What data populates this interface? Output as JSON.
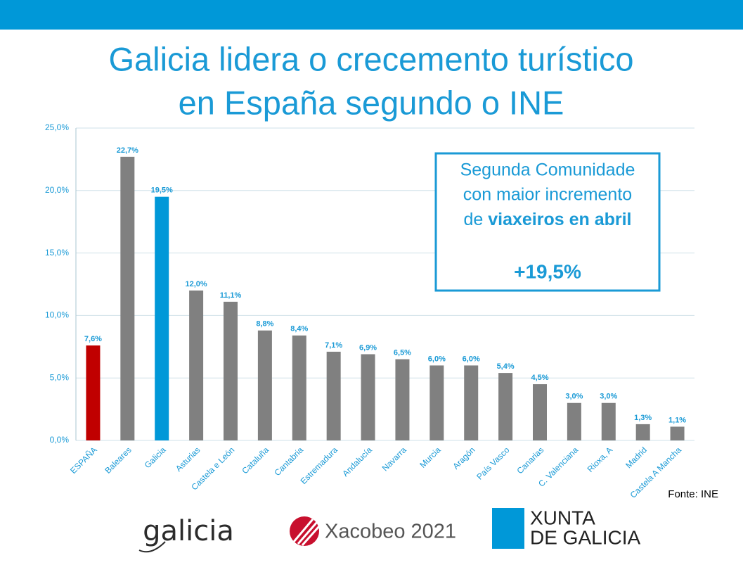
{
  "chart_data": {
    "type": "bar",
    "title": [
      "Galicia lidera o crecemento turístico",
      "en España segundo o INE"
    ],
    "categories": [
      "ESPAÑA",
      "Baleares",
      "Galicia",
      "Asturias",
      "Castela e León",
      "Cataluña",
      "Cantabria",
      "Estremadura",
      "Andalucía",
      "Navarra",
      "Murcia",
      "Aragón",
      "País Vasco",
      "Canarias",
      "C. Valenciana",
      "Rioxa, A",
      "Madrid",
      "Castela A Mancha"
    ],
    "values": [
      7.6,
      22.7,
      19.5,
      12.0,
      11.1,
      8.8,
      8.4,
      7.1,
      6.9,
      6.5,
      6.0,
      6.0,
      5.4,
      4.5,
      3.0,
      3.0,
      1.3,
      1.1
    ],
    "value_labels": [
      "7,6%",
      "22,7%",
      "19,5%",
      "12,0%",
      "11,1%",
      "8,8%",
      "8,4%",
      "7,1%",
      "6,9%",
      "6,5%",
      "6,0%",
      "6,0%",
      "5,4%",
      "4,5%",
      "3,0%",
      "3,0%",
      "1,3%",
      "1,1%"
    ],
    "colors": [
      "#c00000",
      "#808080",
      "#0098d8",
      "#808080",
      "#808080",
      "#808080",
      "#808080",
      "#808080",
      "#808080",
      "#808080",
      "#808080",
      "#808080",
      "#808080",
      "#808080",
      "#808080",
      "#808080",
      "#808080",
      "#808080"
    ],
    "ylim": [
      0,
      25
    ],
    "yticks": [
      {
        "value": 0,
        "label": "0,0%"
      },
      {
        "value": 5,
        "label": "5,0%"
      },
      {
        "value": 10,
        "label": "10,0%"
      },
      {
        "value": 15,
        "label": "15,0%"
      },
      {
        "value": 20,
        "label": "20,0%"
      },
      {
        "value": 25,
        "label": "25,0%"
      }
    ],
    "grid": true,
    "annotation": {
      "lines": [
        "Segunda Comunidade",
        "con maior incremento"
      ],
      "prefix": "de",
      "highlight": "viaxeiros en abril",
      "figure": "+19,5%"
    },
    "source": "Fonte: INE"
  },
  "footer": {
    "galicia": "galicia",
    "xacobeo": "Xacobeo 2021",
    "xunta": [
      "XUNTA",
      "DE GALICIA"
    ]
  }
}
